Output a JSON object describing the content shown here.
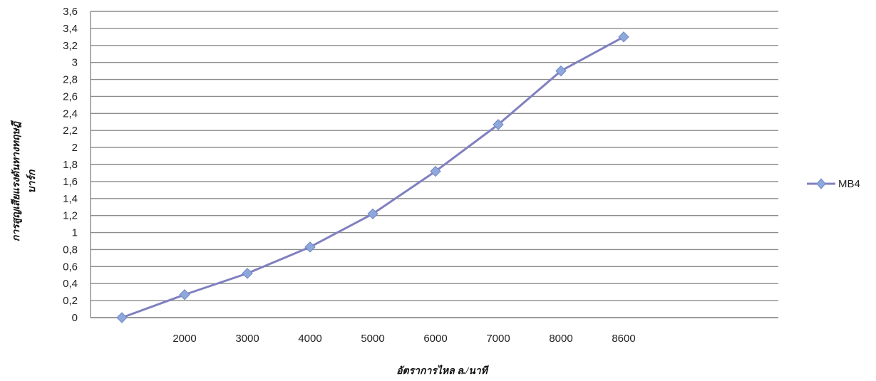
{
  "chart_data": {
    "type": "line",
    "title": "",
    "xlabel": "อัตราการไหล ล./นาที",
    "ylabel_lines": [
      "การสูญเสียแรงดันทางทฤษฎี",
      "บาร์ก"
    ],
    "categories": [
      "",
      "2000",
      "3000",
      "4000",
      "5000",
      "6000",
      "7000",
      "8000",
      "8600"
    ],
    "ylim": [
      0,
      3.6
    ],
    "ytick_labels": [
      "0",
      "0,2",
      "0,4",
      "0,6",
      "0,8",
      "1",
      "1,2",
      "1,4",
      "1,6",
      "1,8",
      "2",
      "2,2",
      "2,4",
      "2,6",
      "2,8",
      "3",
      "3,2",
      "3,4",
      "3,6"
    ],
    "grid": true,
    "legend_position": "right",
    "series": [
      {
        "name": "MB4",
        "color": "#8080c0",
        "marker_color": "#8fa8dc",
        "values": [
          0,
          0.27,
          0.52,
          0.83,
          1.22,
          1.72,
          2.27,
          2.9,
          3.3
        ]
      }
    ]
  }
}
